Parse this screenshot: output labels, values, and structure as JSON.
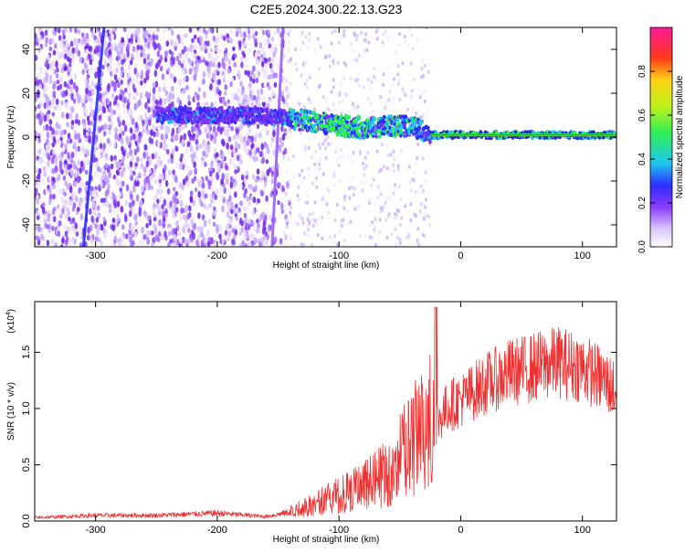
{
  "title": "C2E5.2024.300.22.13.G23",
  "chart_data": [
    {
      "type": "heatmap",
      "xlabel": "Height of straight line (km)",
      "ylabel": "Frequency (Hz)",
      "xlim": [
        -350,
        128
      ],
      "ylim": [
        -50,
        50
      ],
      "xticks": [
        -300,
        -200,
        -100,
        0,
        100
      ],
      "xtick_labels": [
        "-300",
        "-200",
        "-100",
        "0",
        "100"
      ],
      "yticks": [
        -40,
        -20,
        0,
        20,
        40
      ],
      "ytick_labels": [
        "-40",
        "-20",
        "0",
        "20",
        "40"
      ],
      "colorbar": {
        "label": "Normalized spectral amplitude",
        "range": [
          0,
          1
        ],
        "ticks": [
          0.0,
          0.2,
          0.4,
          0.6,
          0.8
        ],
        "tick_labels": [
          "0.0",
          "0.2",
          "0.4",
          "0.6",
          "0.8"
        ],
        "colors": [
          "#ffffff",
          "#dcc8ff",
          "#8a3dff",
          "#2f2dff",
          "#1ec6f0",
          "#2fef55",
          "#bff21b",
          "#ffd315",
          "#ff3a18",
          "#ff1a9a"
        ]
      },
      "grid": false,
      "ridge": [
        {
          "x": -180,
          "y": 10
        },
        {
          "x": -150,
          "y": 9
        },
        {
          "x": -120,
          "y": 7
        },
        {
          "x": -100,
          "y": 5
        },
        {
          "x": -80,
          "y": 4
        },
        {
          "x": -60,
          "y": 5
        },
        {
          "x": -40,
          "y": 5
        },
        {
          "x": -25,
          "y": 1
        },
        {
          "x": 0,
          "y": 1
        },
        {
          "x": 50,
          "y": 1
        },
        {
          "x": 100,
          "y": 1
        },
        {
          "x": 128,
          "y": 1
        }
      ],
      "streaks": [
        {
          "x_bottom": -310,
          "x_top": -293,
          "color": "#2b2df5"
        },
        {
          "x_bottom": -155,
          "x_top": -146,
          "color": "#9b5dff"
        }
      ]
    },
    {
      "type": "line",
      "xlabel": "Height of straight line (km)",
      "ylabel": "SNR (10 * v/v)",
      "scale_note": "(x10",
      "scale_exp": "4",
      "xlim": [
        -350,
        128
      ],
      "ylim": [
        0,
        19500
      ],
      "xticks": [
        -300,
        -200,
        -100,
        0,
        100
      ],
      "xtick_labels": [
        "-300",
        "-200",
        "-100",
        "0",
        "100"
      ],
      "yticks": [
        0,
        5000,
        10000,
        15000
      ],
      "ytick_labels": [
        "0.0",
        "0.5",
        "1.0",
        "1.5"
      ],
      "grid": false,
      "series": [
        {
          "color": "#f03030",
          "x": [
            -350,
            -300,
            -250,
            -200,
            -160,
            -140,
            -120,
            -100,
            -80,
            -60,
            -45,
            -30,
            -20,
            -10,
            0,
            20,
            40,
            60,
            80,
            100,
            115,
            128
          ],
          "y": [
            300,
            500,
            500,
            700,
            400,
            800,
            1500,
            2200,
            3000,
            4000,
            6000,
            8000,
            9000,
            10500,
            11000,
            12500,
            13500,
            14000,
            14500,
            14000,
            13000,
            12000
          ]
        }
      ]
    }
  ]
}
